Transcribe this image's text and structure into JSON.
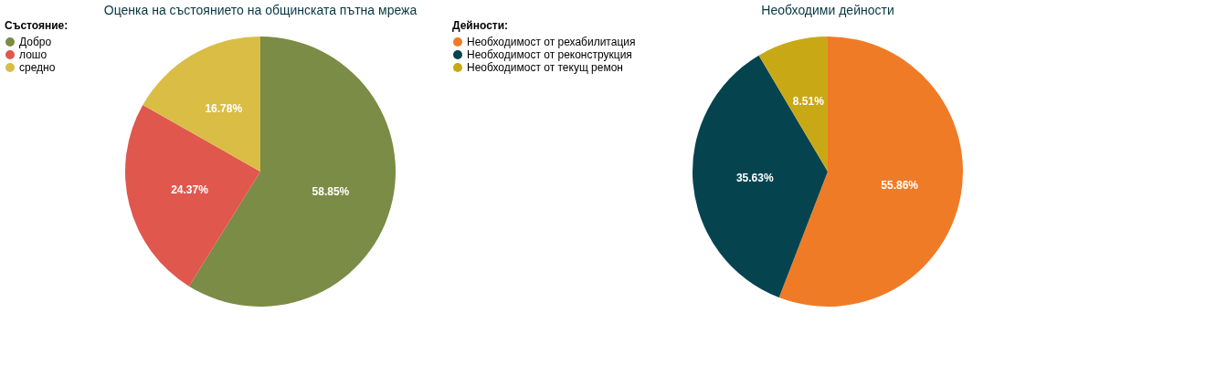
{
  "chart_data": [
    {
      "type": "pie",
      "title": "Оценка на състоянието на общинската пътна мрежа",
      "legend_title": "Състояние:",
      "legend": "left",
      "categories": [
        "Добро",
        "лошо",
        "средно"
      ],
      "values": [
        58.85,
        24.37,
        16.78
      ],
      "value_labels": [
        "58.85%",
        "24.37%",
        "16.78%"
      ],
      "colors": [
        "#7a8c45",
        "#e0574e",
        "#d9bd45"
      ]
    },
    {
      "type": "pie",
      "title": "Необходими дейности",
      "legend_title": "Дейности:",
      "legend": "left",
      "categories": [
        "Необходимост от рехабилитация",
        "Необходимост от реконструкция",
        "Необходимост от текущ ремон"
      ],
      "values": [
        55.86,
        35.63,
        8.51
      ],
      "value_labels": [
        "55.86%",
        "35.63%",
        "8.51%"
      ],
      "colors": [
        "#f07b26",
        "#05444f",
        "#c9a816"
      ]
    }
  ]
}
